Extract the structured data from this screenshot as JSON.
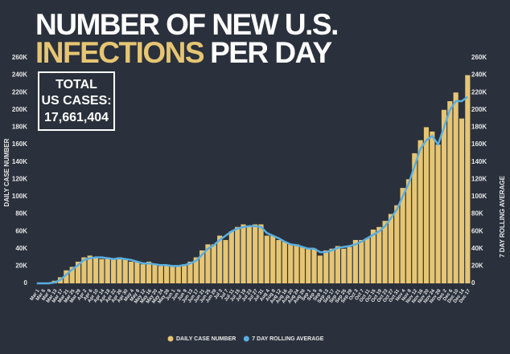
{
  "chart_data": {
    "type": "bar",
    "title_line1": "NUMBER OF NEW U.S.",
    "title_highlight": "INFECTIONS",
    "title_rest": "PER DAY",
    "total_label_1": "TOTAL",
    "total_label_2": "US CASES:",
    "total_value": "17,661,404",
    "y_label": "DAILY CASE NUMBER",
    "y2_label": "7 DAY ROLLING AVERAGE",
    "categories": [
      "Mar 1",
      "Mar 5",
      "Mar 9",
      "Mar 13",
      "Mar 17",
      "Mar 21",
      "Mar 25",
      "Mar 29",
      "Apr 2",
      "Apr 6",
      "Apr 10",
      "Apr 14",
      "Apr 18",
      "Apr 22",
      "Apr 26",
      "Apr 30",
      "May 4",
      "May 8",
      "May 12",
      "May 16",
      "May 20",
      "May 24",
      "May 28",
      "Jun 1",
      "Jun 5",
      "Jun 9",
      "Jun 13",
      "Jun 17",
      "Jun 21",
      "Jun 25",
      "Jun 29",
      "Jul 3",
      "Jul 7",
      "Jul 11",
      "Jul 15",
      "Jul 19",
      "Jul 23",
      "Jul 27",
      "Jul 31",
      "Aug 4",
      "Aug 8",
      "Aug 12",
      "Aug 16",
      "Aug 20",
      "Aug 24",
      "Aug 28",
      "Sep 1",
      "Sep 5",
      "Sep 9",
      "Sep 13",
      "Sep 17",
      "Sep 21",
      "Sep 25",
      "Sep 29",
      "Oct 3",
      "Oct 7",
      "Oct 11",
      "Oct 15",
      "Oct 19",
      "Oct 23",
      "Oct 27",
      "Oct 31",
      "Nov 4",
      "Nov 8",
      "Nov 12",
      "Nov 16",
      "Nov 20",
      "Nov 24",
      "Nov 28",
      "Dec 2",
      "Dec 6",
      "Dec 10",
      "Dec 14",
      "Dec 17"
    ],
    "series": [
      {
        "name": "DAILY CASE NUMBER",
        "color": "#e6c573",
        "values": [
          0,
          100,
          500,
          3000,
          7000,
          15000,
          19000,
          25000,
          30000,
          32000,
          30000,
          28000,
          30000,
          28000,
          30000,
          28000,
          25000,
          25000,
          22000,
          25000,
          22000,
          20000,
          21000,
          20000,
          20000,
          22000,
          25000,
          30000,
          38000,
          45000,
          45000,
          55000,
          50000,
          60000,
          65000,
          68000,
          65000,
          68000,
          68000,
          55000,
          55000,
          50000,
          48000,
          45000,
          45000,
          42000,
          40000,
          40000,
          32000,
          38000,
          40000,
          43000,
          40000,
          42000,
          50000,
          50000,
          52000,
          62000,
          65000,
          72000,
          80000,
          90000,
          110000,
          120000,
          150000,
          165000,
          180000,
          175000,
          160000,
          200000,
          210000,
          220000,
          190000,
          240000
        ]
      },
      {
        "name": "7 DAY ROLLING AVERAGE",
        "color": "#5aaee0",
        "axis": "y2",
        "values": [
          0,
          0,
          0,
          1000,
          4000,
          10000,
          16000,
          21000,
          27000,
          29000,
          30000,
          30000,
          29000,
          28000,
          29000,
          28000,
          27000,
          25000,
          23000,
          23000,
          22000,
          21000,
          21000,
          20000,
          20000,
          21000,
          23000,
          26000,
          33000,
          40000,
          44000,
          50000,
          55000,
          60000,
          63000,
          65000,
          66000,
          66000,
          65000,
          58000,
          55000,
          52000,
          48000,
          45000,
          44000,
          42000,
          40000,
          40000,
          36000,
          36000,
          38000,
          41000,
          42000,
          43000,
          45000,
          48000,
          52000,
          56000,
          60000,
          66000,
          75000,
          85000,
          100000,
          115000,
          135000,
          155000,
          165000,
          170000,
          160000,
          180000,
          200000,
          210000,
          210000,
          215000
        ]
      }
    ],
    "ylim": [
      0,
      260000
    ],
    "yticks": [
      0,
      {
        "value": 20000,
        "label": "20K"
      },
      {
        "value": 40000,
        "label": "40K"
      },
      {
        "value": 60000,
        "label": "60K"
      },
      {
        "value": 80000,
        "label": "80K"
      },
      {
        "value": 100000,
        "label": "100K"
      },
      {
        "value": 120000,
        "label": "120K"
      },
      {
        "value": 140000,
        "label": "140K"
      },
      {
        "value": 160000,
        "label": "160K"
      },
      {
        "value": 180000,
        "label": "180K"
      },
      {
        "value": 200000,
        "label": "200K"
      },
      {
        "value": 220000,
        "label": "220K"
      },
      {
        "value": 240000,
        "label": "240K"
      },
      {
        "value": 260000,
        "label": "260K"
      }
    ],
    "y2lim": [
      0,
      260000
    ],
    "y2ticks": [
      0,
      {
        "value": 20000,
        "label": "20K"
      },
      {
        "value": 40000,
        "label": "40K"
      },
      {
        "value": 60000,
        "label": "60K"
      },
      {
        "value": 80000,
        "label": "80K"
      },
      {
        "value": 100000,
        "label": "100K"
      },
      {
        "value": 120000,
        "label": "120K"
      },
      {
        "value": 140000,
        "label": "140K"
      },
      {
        "value": 160000,
        "label": "160K"
      },
      {
        "value": 180000,
        "label": "180K"
      },
      {
        "value": 200000,
        "label": "200K"
      },
      {
        "value": 220000,
        "label": "220K"
      },
      {
        "value": 240000,
        "label": "240K"
      },
      {
        "value": 260000,
        "label": "260K"
      }
    ]
  }
}
